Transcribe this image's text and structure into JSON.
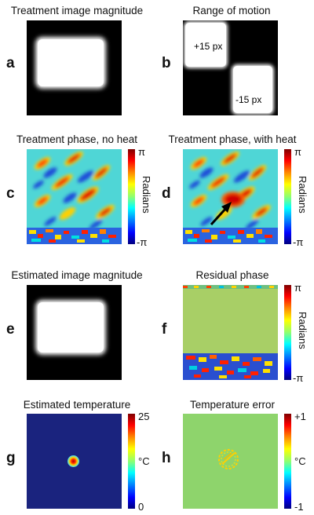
{
  "panels": {
    "a": {
      "letter": "a",
      "title": "Treatment image magnitude"
    },
    "b": {
      "letter": "b",
      "title": "Range of motion",
      "label_top": "+15 px",
      "label_bottom": "-15 px"
    },
    "c": {
      "letter": "c",
      "title": "Treatment phase, no heat",
      "cbar_top": "π",
      "cbar_bottom": "-π",
      "cbar_unit": "Radians"
    },
    "d": {
      "letter": "d",
      "title": "Treatment phase, with heat",
      "cbar_top": "π",
      "cbar_bottom": "-π",
      "cbar_unit": "Radians"
    },
    "e": {
      "letter": "e",
      "title": "Estimated image magnitude"
    },
    "f": {
      "letter": "f",
      "title": "Residual phase",
      "cbar_top": "π",
      "cbar_bottom": "-π",
      "cbar_unit": "Radians"
    },
    "g": {
      "letter": "g",
      "title": "Estimated temperature",
      "cbar_top": "25",
      "cbar_bottom": "0",
      "cbar_unit": "°C"
    },
    "h": {
      "letter": "h",
      "title": "Temperature error",
      "cbar_top": "+1",
      "cbar_bottom": "-1",
      "cbar_unit": "°C"
    }
  },
  "colors": {
    "background": "#000000",
    "white": "#ffffff",
    "field_cyan": "#4fd6d6",
    "field_red": "#cc0000",
    "temp_bg": "#1a237e",
    "error_bg": "#8ed46c"
  }
}
